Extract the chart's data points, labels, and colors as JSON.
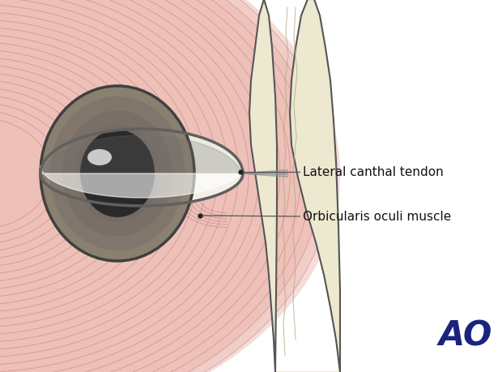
{
  "bg_color": "#ffffff",
  "skin_fill": "#ede8d0",
  "skin_inner": "#e8e0c0",
  "skin_outline": "#555555",
  "muscle_light": "#f0c8c0",
  "muscle_mid": "#e8a8a0",
  "muscle_dark": "#d08080",
  "muscle_line_color": "#c07070",
  "sclera_white": "#f8f8f0",
  "sclera_shadow": "#ddddd0",
  "iris_outer": "#8a8070",
  "iris_mid": "#6a6060",
  "pupil_color": "#2a2828",
  "highlight_color": "#ffffff",
  "eyelid_gray": "#a0a0a0",
  "eyelid_dark": "#606060",
  "eyelid_white": "#e8e8e0",
  "label1": "Lateral canthal tendon",
  "label2": "Orbicularis oculi muscle",
  "ao_color": "#1a237e",
  "line_color": "#555555",
  "dot_color": "#222222"
}
